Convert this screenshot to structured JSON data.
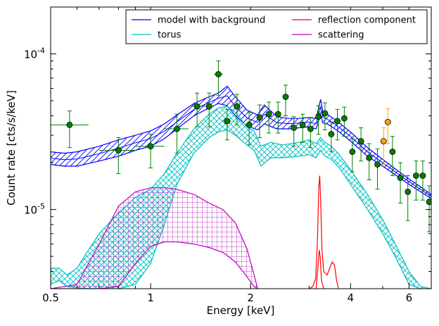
{
  "chart_data": {
    "type": "scatter",
    "xlabel": "Energy [keV]",
    "ylabel": "Count rate [cts/s/keV]",
    "xscale": "log",
    "yscale": "log",
    "xlim": [
      0.5,
      7.0
    ],
    "ylim": [
      3.1e-06,
      0.0002
    ],
    "grid": false,
    "legend_position": "top-right",
    "x_ticks": [
      {
        "value": 0.5,
        "label": "0.5"
      },
      {
        "value": 1,
        "label": "1"
      },
      {
        "value": 2,
        "label": "2"
      },
      {
        "value": 4,
        "label": "4"
      },
      {
        "value": 6,
        "label": "6"
      }
    ],
    "y_ticks": [
      {
        "value": 1e-05,
        "label": "10⁻⁵",
        "base": "10",
        "exp": "-5"
      },
      {
        "value": 0.0001,
        "label": "10⁻⁴",
        "base": "10",
        "exp": "-4"
      }
    ],
    "legend": [
      {
        "name": "model with background",
        "color": "#0000ff"
      },
      {
        "name": "reflection component",
        "color": "#ff0000"
      },
      {
        "name": "torus",
        "color": "#00bfbf"
      },
      {
        "name": "scattering",
        "color": "#bf00bf"
      }
    ],
    "bands": [
      {
        "series": "model with background",
        "color": "#0000ff",
        "hatch": "diag",
        "x": [
          0.5,
          0.55,
          0.6,
          0.7,
          0.8,
          0.9,
          1.0,
          1.1,
          1.2,
          1.35,
          1.5,
          1.6,
          1.7,
          1.8,
          1.95,
          2.1,
          2.2,
          2.4,
          2.6,
          2.8,
          3.0,
          3.15,
          3.25,
          3.3,
          3.4,
          3.55,
          3.7,
          4.0,
          4.5,
          5.0,
          5.5,
          6.0,
          6.5,
          7.0
        ],
        "lower": [
          1.95e-05,
          1.9e-05,
          1.9e-05,
          2.05e-05,
          2.2e-05,
          2.4e-05,
          2.55e-05,
          2.85e-05,
          3.3e-05,
          4e-05,
          4.5e-05,
          4.8e-05,
          4.65e-05,
          4e-05,
          3.45e-05,
          3.25e-05,
          3.55e-05,
          3.3e-05,
          3.3e-05,
          3.35e-05,
          3.4e-05,
          3.3e-05,
          4.1e-05,
          3.6e-05,
          3.55e-05,
          3.35e-05,
          3.15e-05,
          2.75e-05,
          2.2e-05,
          1.9e-05,
          1.65e-05,
          1.45e-05,
          1.3e-05,
          1.18e-05
        ],
        "upper": [
          2.35e-05,
          2.3e-05,
          2.35e-05,
          2.55e-05,
          2.8e-05,
          3e-05,
          3.2e-05,
          3.55e-05,
          4.05e-05,
          4.8e-05,
          5.3e-05,
          5.6e-05,
          6.2e-05,
          5.3e-05,
          4.35e-05,
          4.05e-05,
          4.7e-05,
          3.95e-05,
          3.85e-05,
          3.85e-05,
          3.9e-05,
          3.85e-05,
          5.1e-05,
          4.3e-05,
          4.1e-05,
          3.85e-05,
          3.6e-05,
          3.15e-05,
          2.5e-05,
          2.1e-05,
          1.8e-05,
          1.57e-05,
          1.4e-05,
          1.25e-05
        ]
      },
      {
        "series": "torus",
        "color": "#00bfbf",
        "hatch": "cross",
        "x": [
          0.5,
          0.53,
          0.56,
          0.6,
          0.65,
          0.7,
          0.8,
          0.9,
          1.0,
          1.1,
          1.2,
          1.35,
          1.5,
          1.6,
          1.7,
          1.8,
          1.95,
          2.05,
          2.15,
          2.3,
          2.5,
          2.8,
          3.0,
          3.15,
          3.25,
          3.35,
          3.5,
          3.7,
          4.0,
          4.5,
          5.0,
          5.5,
          6.0,
          6.5,
          7.0
        ],
        "lower": [
          3.3e-06,
          3.5e-06,
          3.2e-06,
          3.15e-06,
          3.1e-06,
          3.1e-06,
          3.1e-06,
          3.3e-06,
          4.5e-06,
          8e-06,
          1.45e-05,
          2.3e-05,
          2.9e-05,
          3.15e-05,
          3.25e-05,
          3e-05,
          2.6e-05,
          2.4e-05,
          1.9e-05,
          2.15e-05,
          2.15e-05,
          2.2e-05,
          2.25e-05,
          2.15e-05,
          2.4e-05,
          2.2e-05,
          2.1e-05,
          1.85e-05,
          1.45e-05,
          1e-05,
          7e-06,
          4.8e-06,
          3.3e-06,
          3.1e-06,
          3.1e-06
        ],
        "upper": [
          4.2e-06,
          4.2e-06,
          3.8e-06,
          4.2e-06,
          5.5e-06,
          7e-06,
          9.5e-06,
          1.2e-05,
          1.35e-05,
          1.7e-05,
          2.3e-05,
          3.3e-05,
          4.1e-05,
          4.5e-05,
          4.6e-05,
          4.2e-05,
          3.4e-05,
          3.2e-05,
          2.55e-05,
          2.7e-05,
          2.6e-05,
          2.7e-05,
          2.8e-05,
          2.65e-05,
          2.9e-05,
          2.7e-05,
          2.55e-05,
          2.25e-05,
          1.8e-05,
          1.25e-05,
          8.6e-06,
          5.8e-06,
          4e-06,
          3.2e-06,
          3.1e-06
        ]
      },
      {
        "series": "scattering",
        "color": "#bf00bf",
        "hatch": "grid",
        "x": [
          0.5,
          0.6,
          0.7,
          0.8,
          0.9,
          1.0,
          1.1,
          1.2,
          1.35,
          1.5,
          1.65,
          1.8,
          1.95,
          2.05,
          2.1
        ],
        "lower": [
          3.1e-06,
          3.1e-06,
          3.1e-06,
          3.2e-06,
          4.5e-06,
          5.8e-06,
          6.2e-06,
          6.2e-06,
          6e-06,
          5.7e-06,
          5.3e-06,
          4.6e-06,
          3.7e-06,
          3.2e-06,
          3.1e-06
        ],
        "upper": [
          3.1e-06,
          3.3e-06,
          6e-06,
          1.05e-05,
          1.3e-05,
          1.38e-05,
          1.38e-05,
          1.35e-05,
          1.25e-05,
          1.1e-05,
          1e-05,
          8.2e-06,
          5.6e-06,
          3.8e-06,
          3.1e-06
        ]
      }
    ],
    "lines": [
      {
        "series": "reflection component",
        "color": "#ff0000",
        "x": [
          3.0,
          3.08,
          3.14,
          3.18,
          3.21,
          3.23,
          3.25,
          3.28,
          3.32,
          3.4,
          3.46,
          3.52,
          3.58,
          3.63,
          3.68
        ],
        "y": [
          3.1e-06,
          3.2e-06,
          3.6e-06,
          6.5e-06,
          1.4e-05,
          1.65e-05,
          1.2e-05,
          5.5e-06,
          4e-06,
          3.8e-06,
          4.2e-06,
          4.6e-06,
          4.4e-06,
          3.5e-06,
          3.1e-06
        ]
      },
      {
        "series": "reflection component",
        "color": "#ff0000",
        "x": [
          3.15,
          3.2,
          3.22,
          3.24,
          3.27,
          3.32
        ],
        "y": [
          3.1e-06,
          4.6e-06,
          5.5e-06,
          5e-06,
          3.5e-06,
          3.1e-06
        ]
      }
    ],
    "points": [
      {
        "series": "data",
        "color": "#008000",
        "x": 0.57,
        "y": 3.5e-05,
        "xerr": [
          0.07,
          0.08
        ],
        "yerr": [
          1e-05,
          8e-06
        ]
      },
      {
        "series": "data",
        "color": "#008000",
        "x": 0.8,
        "y": 2.4e-05,
        "xerr": [
          0.1,
          0.1
        ],
        "yerr": [
          7e-06,
          5e-06
        ]
      },
      {
        "series": "data",
        "color": "#008000",
        "x": 1.0,
        "y": 2.55e-05,
        "xerr": [
          0.1,
          0.1
        ],
        "yerr": [
          7e-06,
          5e-06
        ]
      },
      {
        "series": "data",
        "color": "#008000",
        "x": 1.2,
        "y": 3.3e-05,
        "xerr": [
          0.1,
          0.1
        ],
        "yerr": [
          1e-05,
          8e-06
        ]
      },
      {
        "series": "data",
        "color": "#008000",
        "x": 1.38,
        "y": 4.6e-05,
        "xerr": [
          0.05,
          0.05
        ],
        "yerr": [
          1.2e-05,
          1e-05
        ]
      },
      {
        "series": "data",
        "color": "#008000",
        "x": 1.5,
        "y": 4.6e-05,
        "xerr": [
          0.05,
          0.05
        ],
        "yerr": [
          1.2e-05,
          1e-05
        ]
      },
      {
        "series": "data",
        "color": "#008000",
        "x": 1.6,
        "y": 7.4e-05,
        "xerr": [
          0.05,
          0.05
        ],
        "yerr": [
          2e-05,
          1.6e-05
        ]
      },
      {
        "series": "data",
        "color": "#008000",
        "x": 1.7,
        "y": 3.7e-05,
        "xerr": [
          0.05,
          0.05
        ],
        "yerr": [
          9e-06,
          7e-06
        ]
      },
      {
        "series": "data",
        "color": "#008000",
        "x": 1.82,
        "y": 4.6e-05,
        "xerr": [
          0.05,
          0.05
        ],
        "yerr": [
          1.1e-05,
          9e-06
        ]
      },
      {
        "series": "data",
        "color": "#008000",
        "x": 1.98,
        "y": 3.5e-05,
        "xerr": [
          0.05,
          0.05
        ],
        "yerr": [
          9e-06,
          7e-06
        ]
      },
      {
        "series": "data",
        "color": "#008000",
        "x": 2.13,
        "y": 3.9e-05,
        "xerr": [
          0.05,
          0.05
        ],
        "yerr": [
          1e-05,
          8e-06
        ]
      },
      {
        "series": "data",
        "color": "#008000",
        "x": 2.27,
        "y": 4.1e-05,
        "xerr": [
          0.05,
          0.05
        ],
        "yerr": [
          1e-05,
          8e-06
        ]
      },
      {
        "series": "data",
        "color": "#008000",
        "x": 2.42,
        "y": 4.1e-05,
        "xerr": [
          0.05,
          0.05
        ],
        "yerr": [
          1e-05,
          8e-06
        ]
      },
      {
        "series": "data",
        "color": "#008000",
        "x": 2.55,
        "y": 5.3e-05,
        "xerr": [
          0.05,
          0.05
        ],
        "yerr": [
          1.3e-05,
          1e-05
        ]
      },
      {
        "series": "data",
        "color": "#008000",
        "x": 2.7,
        "y": 3.35e-05,
        "xerr": [
          0.05,
          0.05
        ],
        "yerr": [
          8e-06,
          6e-06
        ]
      },
      {
        "series": "data",
        "color": "#008000",
        "x": 2.87,
        "y": 3.5e-05,
        "xerr": [
          0.05,
          0.05
        ],
        "yerr": [
          8e-06,
          6e-06
        ]
      },
      {
        "series": "data",
        "color": "#008000",
        "x": 3.03,
        "y": 3.3e-05,
        "xerr": [
          0.05,
          0.05
        ],
        "yerr": [
          8e-06,
          6e-06
        ]
      },
      {
        "series": "data",
        "color": "#008000",
        "x": 3.2,
        "y": 3.95e-05,
        "xerr": [
          0.05,
          0.05
        ],
        "yerr": [
          9e-06,
          7e-06
        ]
      },
      {
        "series": "data",
        "color": "#008000",
        "x": 3.35,
        "y": 4.15e-05,
        "xerr": [
          0.05,
          0.05
        ],
        "yerr": [
          9e-06,
          7e-06
        ]
      },
      {
        "series": "data",
        "color": "#008000",
        "x": 3.5,
        "y": 3.05e-05,
        "xerr": [
          0.05,
          0.05
        ],
        "yerr": [
          7e-06,
          6e-06
        ]
      },
      {
        "series": "data",
        "color": "#008000",
        "x": 3.65,
        "y": 3.7e-05,
        "xerr": [
          0.05,
          0.05
        ],
        "yerr": [
          9e-06,
          7e-06
        ]
      },
      {
        "series": "data",
        "color": "#008000",
        "x": 3.83,
        "y": 3.85e-05,
        "xerr": [
          0.05,
          0.05
        ],
        "yerr": [
          9e-06,
          7e-06
        ]
      },
      {
        "series": "data",
        "color": "#008000",
        "x": 4.05,
        "y": 2.35e-05,
        "xerr": [
          0.08,
          0.08
        ],
        "yerr": [
          6e-06,
          5e-06
        ]
      },
      {
        "series": "data",
        "color": "#008000",
        "x": 4.3,
        "y": 2.75e-05,
        "xerr": [
          0.08,
          0.08
        ],
        "yerr": [
          7e-06,
          6e-06
        ]
      },
      {
        "series": "data",
        "color": "#008000",
        "x": 4.55,
        "y": 2.15e-05,
        "xerr": [
          0.08,
          0.08
        ],
        "yerr": [
          6e-06,
          5e-06
        ]
      },
      {
        "series": "data",
        "color": "#008000",
        "x": 4.82,
        "y": 1.95e-05,
        "xerr": [
          0.08,
          0.08
        ],
        "yerr": [
          6e-06,
          5e-06
        ]
      },
      {
        "series": "data",
        "color": "#008000",
        "x": 5.35,
        "y": 2.35e-05,
        "xerr": [
          0.08,
          0.08
        ],
        "yerr": [
          7e-06,
          6e-06
        ]
      },
      {
        "series": "data",
        "color": "#008000",
        "x": 5.65,
        "y": 1.6e-05,
        "xerr": [
          0.1,
          0.1
        ],
        "yerr": [
          5e-06,
          4e-06
        ]
      },
      {
        "series": "data",
        "color": "#008000",
        "x": 5.95,
        "y": 1.3e-05,
        "xerr": [
          0.1,
          0.1
        ],
        "yerr": [
          4.5e-06,
          3.5e-06
        ]
      },
      {
        "series": "data",
        "color": "#008000",
        "x": 6.3,
        "y": 1.65e-05,
        "xerr": [
          0.1,
          0.1
        ],
        "yerr": [
          5e-06,
          4e-06
        ]
      },
      {
        "series": "data",
        "color": "#008000",
        "x": 6.6,
        "y": 1.65e-05,
        "xerr": [
          0.1,
          0.1
        ],
        "yerr": [
          5e-06,
          4e-06
        ]
      },
      {
        "series": "data",
        "color": "#008000",
        "x": 6.9,
        "y": 1.12e-05,
        "xerr": [
          0.08,
          0.08
        ],
        "yerr": [
          4e-06,
          3e-06
        ]
      },
      {
        "series": "data-orange",
        "color": "#ffa500",
        "x": 5.03,
        "y": 2.75e-05,
        "xerr": [
          0.05,
          0.05
        ],
        "yerr": [
          8e-06,
          6e-06
        ]
      },
      {
        "series": "data-orange",
        "color": "#ffa500",
        "x": 5.18,
        "y": 3.65e-05,
        "xerr": [
          0.05,
          0.05
        ],
        "yerr": [
          1e-05,
          8e-06
        ]
      }
    ]
  }
}
